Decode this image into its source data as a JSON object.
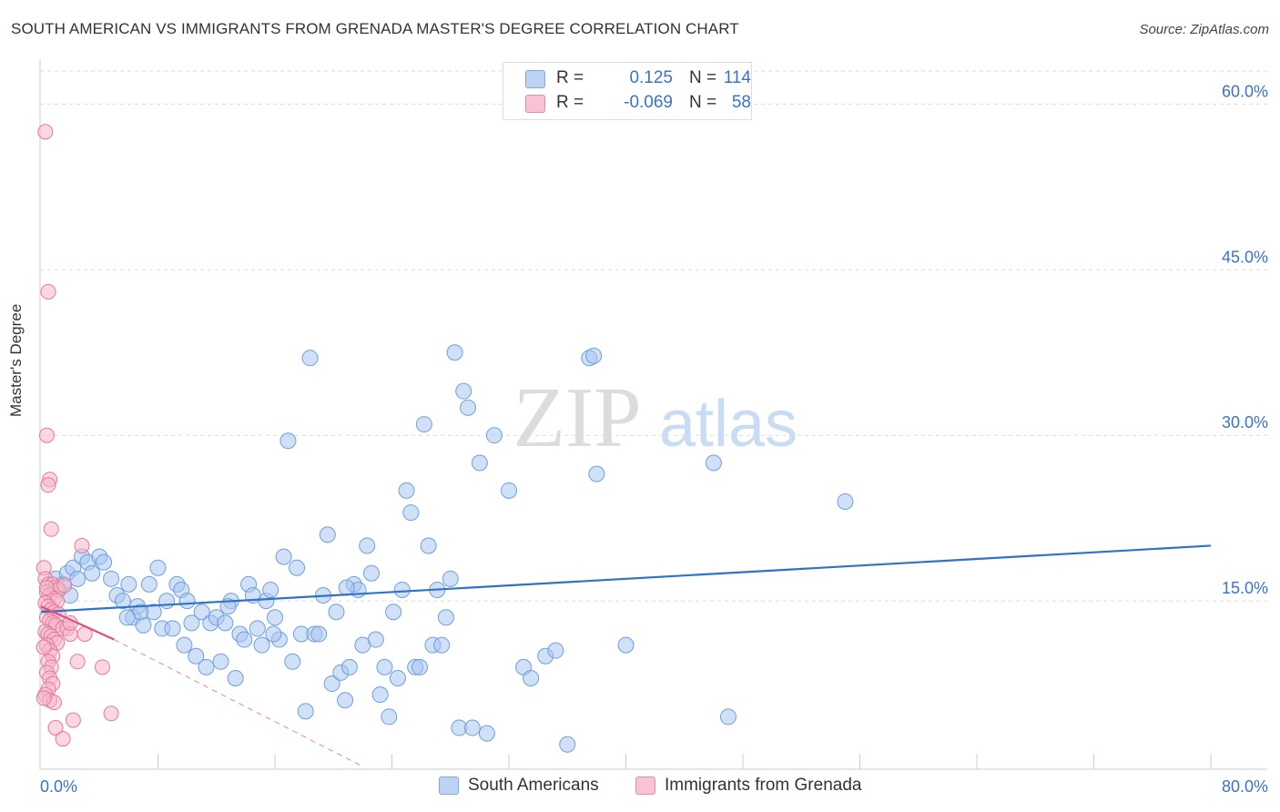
{
  "title": "SOUTH AMERICAN VS IMMIGRANTS FROM GRENADA MASTER'S DEGREE CORRELATION CHART",
  "source": "Source: ZipAtlas.com",
  "watermark": {
    "zip": "ZIP",
    "atlas": "atlas"
  },
  "legend_top": {
    "rows": [
      {
        "r_label": "R =",
        "r_value": "0.125",
        "n_label": "N =",
        "n_value": "114"
      },
      {
        "r_label": "R =",
        "r_value": "-0.069",
        "n_label": "N =",
        "n_value": "58"
      }
    ]
  },
  "legend_bottom": {
    "series0": "South Americans",
    "series1": "Immigrants from Grenada"
  },
  "colors": {
    "blue_fill": "#a9c6ee",
    "blue_stroke": "#6f9fdc",
    "blue_line": "#2f73c8",
    "pink_fill": "#f5b6ca",
    "pink_stroke": "#e47a9c",
    "pink_line": "#e0507e",
    "tick_label": "#3a72c9",
    "grid": "#dcdcdc"
  },
  "chart_data": {
    "type": "scatter",
    "title": "SOUTH AMERICAN VS IMMIGRANTS FROM GRENADA MASTER'S DEGREE CORRELATION CHART",
    "xlabel": "",
    "ylabel": "Master's Degree",
    "xlim": [
      0,
      80
    ],
    "ylim": [
      0,
      63
    ],
    "x_tick_labels": [
      {
        "v": 0,
        "label": "0.0%"
      },
      {
        "v": 80,
        "label": "80.0%"
      }
    ],
    "y_tick_labels": [
      {
        "v": 15,
        "label": "15.0%"
      },
      {
        "v": 30,
        "label": "30.0%"
      },
      {
        "v": 45,
        "label": "45.0%"
      },
      {
        "v": 60,
        "label": "60.0%"
      }
    ],
    "x_minor_ticks": [
      8,
      16,
      24,
      32,
      40,
      48,
      56,
      64,
      72,
      80
    ],
    "grid": true,
    "legend": "top-center",
    "series": [
      {
        "name": "South Americans",
        "r": 0.125,
        "n": 114,
        "trend": {
          "x0": 0,
          "y0": 14.0,
          "x1": 80,
          "y1": 20.0
        },
        "points": [
          [
            1.0,
            17.0
          ],
          [
            1.2,
            16.0
          ],
          [
            1.5,
            16.5
          ],
          [
            1.8,
            17.5
          ],
          [
            2.0,
            15.5
          ],
          [
            2.2,
            18.0
          ],
          [
            2.5,
            17.0
          ],
          [
            2.8,
            19.0
          ],
          [
            3.2,
            18.5
          ],
          [
            3.5,
            17.5
          ],
          [
            4.0,
            19.0
          ],
          [
            4.3,
            18.5
          ],
          [
            4.8,
            17.0
          ],
          [
            5.2,
            15.5
          ],
          [
            5.6,
            15.0
          ],
          [
            6.0,
            16.5
          ],
          [
            6.3,
            13.5
          ],
          [
            6.6,
            14.5
          ],
          [
            7.0,
            12.8
          ],
          [
            7.4,
            16.5
          ],
          [
            7.7,
            14.0
          ],
          [
            8.0,
            18.0
          ],
          [
            8.3,
            12.5
          ],
          [
            8.6,
            15.0
          ],
          [
            9.0,
            12.5
          ],
          [
            9.3,
            16.5
          ],
          [
            9.6,
            16.0
          ],
          [
            10.0,
            15.0
          ],
          [
            10.3,
            13.0
          ],
          [
            10.6,
            10.0
          ],
          [
            11.0,
            14.0
          ],
          [
            11.3,
            9.0
          ],
          [
            11.6,
            13.0
          ],
          [
            12.0,
            13.5
          ],
          [
            12.3,
            9.5
          ],
          [
            12.6,
            13.0
          ],
          [
            13.0,
            15.0
          ],
          [
            13.3,
            8.0
          ],
          [
            13.6,
            12.0
          ],
          [
            13.9,
            11.5
          ],
          [
            14.2,
            16.5
          ],
          [
            14.5,
            15.5
          ],
          [
            14.8,
            12.5
          ],
          [
            15.1,
            11.0
          ],
          [
            15.4,
            15.0
          ],
          [
            15.7,
            16.0
          ],
          [
            16.0,
            13.5
          ],
          [
            16.3,
            11.5
          ],
          [
            16.6,
            19.0
          ],
          [
            16.9,
            29.5
          ],
          [
            17.2,
            9.5
          ],
          [
            17.5,
            18.0
          ],
          [
            17.8,
            12.0
          ],
          [
            18.1,
            5.0
          ],
          [
            18.4,
            37.0
          ],
          [
            18.7,
            12.0
          ],
          [
            19.0,
            12.0
          ],
          [
            19.3,
            15.5
          ],
          [
            19.6,
            21.0
          ],
          [
            19.9,
            7.5
          ],
          [
            20.2,
            14.0
          ],
          [
            20.5,
            8.5
          ],
          [
            20.8,
            6.0
          ],
          [
            21.1,
            9.0
          ],
          [
            21.4,
            16.5
          ],
          [
            21.7,
            16.0
          ],
          [
            22.0,
            11.0
          ],
          [
            22.3,
            20.0
          ],
          [
            22.6,
            17.5
          ],
          [
            22.9,
            11.5
          ],
          [
            23.2,
            6.5
          ],
          [
            23.5,
            9.0
          ],
          [
            23.8,
            4.5
          ],
          [
            24.1,
            14.0
          ],
          [
            24.4,
            8.0
          ],
          [
            24.7,
            16.0
          ],
          [
            25.0,
            25.0
          ],
          [
            25.3,
            23.0
          ],
          [
            25.6,
            9.0
          ],
          [
            25.9,
            9.0
          ],
          [
            26.2,
            31.0
          ],
          [
            26.5,
            20.0
          ],
          [
            26.8,
            11.0
          ],
          [
            27.1,
            16.0
          ],
          [
            27.4,
            11.0
          ],
          [
            27.7,
            13.5
          ],
          [
            28.0,
            17.0
          ],
          [
            28.3,
            37.5
          ],
          [
            28.6,
            3.5
          ],
          [
            28.9,
            34.0
          ],
          [
            29.2,
            32.5
          ],
          [
            29.5,
            3.5
          ],
          [
            30.0,
            27.5
          ],
          [
            30.5,
            3.0
          ],
          [
            31.0,
            30.0
          ],
          [
            32.0,
            25.0
          ],
          [
            33.0,
            9.0
          ],
          [
            33.5,
            8.0
          ],
          [
            34.5,
            10.0
          ],
          [
            35.2,
            10.5
          ],
          [
            36.0,
            2.0
          ],
          [
            37.5,
            37.0
          ],
          [
            37.8,
            37.2
          ],
          [
            38.0,
            26.5
          ],
          [
            40.0,
            11.0
          ],
          [
            46.0,
            27.5
          ],
          [
            47.0,
            4.5
          ],
          [
            55.0,
            24.0
          ],
          [
            6.8,
            14.0
          ],
          [
            12.8,
            14.5
          ],
          [
            5.9,
            13.5
          ],
          [
            9.8,
            11.0
          ],
          [
            15.9,
            12.0
          ],
          [
            20.9,
            16.2
          ]
        ]
      },
      {
        "name": "Immigrants from Grenada",
        "r": -0.069,
        "n": 58,
        "trend": {
          "x0": 0,
          "y0": 14.5,
          "x1": 5.0,
          "y1": 11.5
        },
        "trend_dashed": {
          "x0": 5.0,
          "y0": 11.5,
          "x1": 22.0,
          "y1": 0.0
        },
        "points": [
          [
            0.3,
            57.5
          ],
          [
            0.5,
            43.0
          ],
          [
            0.4,
            30.0
          ],
          [
            0.6,
            26.0
          ],
          [
            0.5,
            25.5
          ],
          [
            0.7,
            21.5
          ],
          [
            2.8,
            20.0
          ],
          [
            0.2,
            18.0
          ],
          [
            0.3,
            17.0
          ],
          [
            0.5,
            16.5
          ],
          [
            0.8,
            16.5
          ],
          [
            1.0,
            16.2
          ],
          [
            1.2,
            16.0
          ],
          [
            0.4,
            15.8
          ],
          [
            0.6,
            15.5
          ],
          [
            0.9,
            15.2
          ],
          [
            1.1,
            15.0
          ],
          [
            0.3,
            14.8
          ],
          [
            0.5,
            14.5
          ],
          [
            0.7,
            14.2
          ],
          [
            0.9,
            14.0
          ],
          [
            1.2,
            13.8
          ],
          [
            0.4,
            13.5
          ],
          [
            0.6,
            13.2
          ],
          [
            0.8,
            13.0
          ],
          [
            1.0,
            12.8
          ],
          [
            1.5,
            12.5
          ],
          [
            1.8,
            12.5
          ],
          [
            0.3,
            12.2
          ],
          [
            0.5,
            12.0
          ],
          [
            0.7,
            11.8
          ],
          [
            0.9,
            11.5
          ],
          [
            1.1,
            11.2
          ],
          [
            2.0,
            12.0
          ],
          [
            3.0,
            12.0
          ],
          [
            0.4,
            11.0
          ],
          [
            0.6,
            10.5
          ],
          [
            0.8,
            10.0
          ],
          [
            0.5,
            9.5
          ],
          [
            0.7,
            9.0
          ],
          [
            2.5,
            9.5
          ],
          [
            4.2,
            9.0
          ],
          [
            0.4,
            8.5
          ],
          [
            0.6,
            8.0
          ],
          [
            0.8,
            7.5
          ],
          [
            0.5,
            7.0
          ],
          [
            0.3,
            6.5
          ],
          [
            0.6,
            6.0
          ],
          [
            0.9,
            5.8
          ],
          [
            4.8,
            4.8
          ],
          [
            2.2,
            4.2
          ],
          [
            1.0,
            3.5
          ],
          [
            1.5,
            2.5
          ],
          [
            0.2,
            6.2
          ],
          [
            0.4,
            16.2
          ],
          [
            1.6,
            16.4
          ],
          [
            2.0,
            13.0
          ],
          [
            0.2,
            10.8
          ]
        ]
      }
    ]
  }
}
